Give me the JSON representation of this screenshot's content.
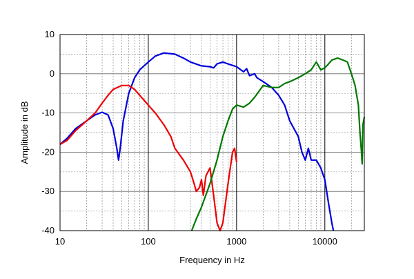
{
  "chart_data": {
    "type": "line",
    "title": "",
    "xlabel": "Frequency in Hz",
    "ylabel": "Amplitude in dB",
    "xscale": "log",
    "xlim": [
      10,
      28000
    ],
    "ylim": [
      -40,
      10
    ],
    "xticks": [
      10,
      100,
      1000,
      10000
    ],
    "yticks": [
      10,
      0,
      -10,
      -20,
      -30,
      -40
    ],
    "grid": true,
    "legend": "none",
    "series": [
      {
        "color": "#0000dd",
        "points": [
          [
            10,
            -18
          ],
          [
            12,
            -16.5
          ],
          [
            15,
            -14
          ],
          [
            20,
            -12
          ],
          [
            25,
            -10.5
          ],
          [
            30,
            -9.8
          ],
          [
            35,
            -10.5
          ],
          [
            40,
            -14
          ],
          [
            44,
            -19
          ],
          [
            46,
            -22
          ],
          [
            48,
            -19
          ],
          [
            52,
            -12
          ],
          [
            60,
            -5
          ],
          [
            70,
            -1
          ],
          [
            80,
            1
          ],
          [
            100,
            3
          ],
          [
            120,
            4.5
          ],
          [
            150,
            5.3
          ],
          [
            200,
            5
          ],
          [
            250,
            4
          ],
          [
            300,
            3
          ],
          [
            400,
            2
          ],
          [
            500,
            1.8
          ],
          [
            550,
            1.5
          ],
          [
            600,
            2.5
          ],
          [
            700,
            3
          ],
          [
            800,
            2.5
          ],
          [
            1000,
            1.8
          ],
          [
            1200,
            0.5
          ],
          [
            1300,
            1.3
          ],
          [
            1400,
            -0.5
          ],
          [
            1600,
            0
          ],
          [
            1700,
            -1
          ],
          [
            2000,
            -2
          ],
          [
            2500,
            -3.5
          ],
          [
            3000,
            -5.5
          ],
          [
            3500,
            -8
          ],
          [
            4000,
            -12
          ],
          [
            5000,
            -16
          ],
          [
            5500,
            -20
          ],
          [
            6000,
            -22
          ],
          [
            6500,
            -19
          ],
          [
            7000,
            -22
          ],
          [
            8000,
            -22
          ],
          [
            9000,
            -24
          ],
          [
            10000,
            -27
          ],
          [
            11000,
            -33
          ],
          [
            12000,
            -38
          ],
          [
            12500,
            -40
          ]
        ]
      },
      {
        "color": "#ee0000",
        "points": [
          [
            10,
            -18
          ],
          [
            12,
            -17
          ],
          [
            15,
            -14.5
          ],
          [
            20,
            -12
          ],
          [
            25,
            -10
          ],
          [
            30,
            -7.5
          ],
          [
            35,
            -5.5
          ],
          [
            40,
            -4
          ],
          [
            50,
            -3
          ],
          [
            60,
            -3
          ],
          [
            70,
            -4
          ],
          [
            80,
            -5.5
          ],
          [
            100,
            -8
          ],
          [
            120,
            -10
          ],
          [
            150,
            -13
          ],
          [
            180,
            -16
          ],
          [
            200,
            -19
          ],
          [
            250,
            -22
          ],
          [
            300,
            -25
          ],
          [
            330,
            -28
          ],
          [
            350,
            -30
          ],
          [
            380,
            -29
          ],
          [
            400,
            -27
          ],
          [
            420,
            -31
          ],
          [
            450,
            -26
          ],
          [
            500,
            -24
          ],
          [
            550,
            -31
          ],
          [
            600,
            -38
          ],
          [
            650,
            -40
          ],
          [
            700,
            -38
          ],
          [
            800,
            -28
          ],
          [
            900,
            -20
          ],
          [
            950,
            -19
          ],
          [
            1000,
            -22.5
          ]
        ]
      },
      {
        "color": "#007700",
        "points": [
          [
            310,
            -40
          ],
          [
            350,
            -37
          ],
          [
            400,
            -34
          ],
          [
            500,
            -28
          ],
          [
            600,
            -22
          ],
          [
            700,
            -16
          ],
          [
            800,
            -12
          ],
          [
            900,
            -9
          ],
          [
            1000,
            -8
          ],
          [
            1200,
            -8.5
          ],
          [
            1400,
            -7.5
          ],
          [
            1600,
            -6
          ],
          [
            2000,
            -3
          ],
          [
            2500,
            -3.5
          ],
          [
            3000,
            -3.5
          ],
          [
            3500,
            -2.5
          ],
          [
            4000,
            -2
          ],
          [
            5000,
            -1
          ],
          [
            6000,
            0
          ],
          [
            7000,
            1
          ],
          [
            8000,
            3
          ],
          [
            9000,
            1
          ],
          [
            10000,
            1.5
          ],
          [
            11000,
            2.5
          ],
          [
            12000,
            3.5
          ],
          [
            14000,
            4
          ],
          [
            16000,
            3.5
          ],
          [
            18000,
            3
          ],
          [
            20000,
            0
          ],
          [
            22000,
            -3
          ],
          [
            24000,
            -8
          ],
          [
            25000,
            -15
          ],
          [
            26000,
            -20
          ],
          [
            26500,
            -23
          ],
          [
            27000,
            -13
          ],
          [
            28000,
            -11
          ]
        ]
      }
    ]
  }
}
